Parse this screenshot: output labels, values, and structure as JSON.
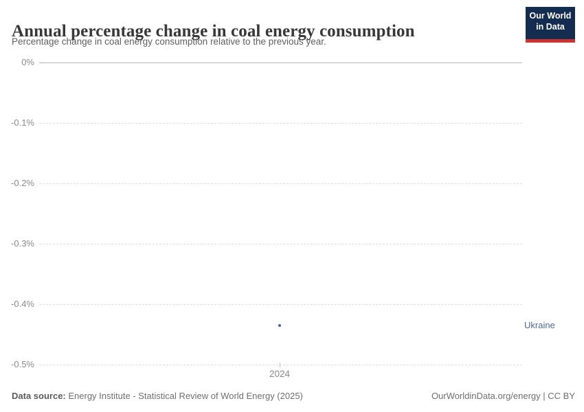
{
  "header": {
    "title": "Annual percentage change in coal energy consumption",
    "subtitle": "Percentage change in coal energy consumption relative to the previous year.",
    "logo": {
      "line1": "Our World",
      "line2": "in Data"
    }
  },
  "chart_data": {
    "type": "scatter",
    "title": "Annual percentage change in coal energy consumption",
    "subtitle": "Percentage change in coal energy consumption relative to the previous year.",
    "series": [
      {
        "name": "Ukraine",
        "x": [
          2024
        ],
        "y": [
          -0.44
        ],
        "unit": "%",
        "color": "#4c6a9c"
      }
    ],
    "x_ticks": [
      "2024"
    ],
    "y_ticks": [
      "0%",
      "-0.1%",
      "-0.2%",
      "-0.3%",
      "-0.4%",
      "-0.5%"
    ],
    "ylim": [
      -0.5,
      0
    ],
    "xlabel": "",
    "ylabel": "",
    "grid": "horizontal-dashed, zero-line solid",
    "legend_position": "entity label right of plot"
  },
  "footer": {
    "source_label": "Data source:",
    "source_text": " Energy Institute - Statistical Review of World Energy (2025)",
    "attribution": "OurWorldinData.org/energy | CC BY"
  },
  "colors": {
    "accent_blue": "#4c6a9c",
    "point_blue": "#3d649f",
    "logo_navy": "#132c4f",
    "logo_red": "#cc3232",
    "zero_line": "#b3b3b3",
    "gridline": "#dedede",
    "axis_text": "#8a8a8a"
  }
}
